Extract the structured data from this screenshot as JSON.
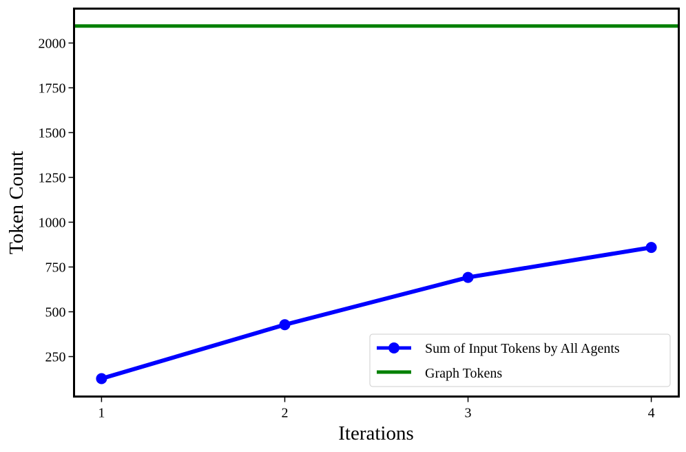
{
  "chart_data": {
    "type": "line",
    "title": "",
    "xlabel": "Iterations",
    "ylabel": "Token Count",
    "xlim": [
      0.85,
      4.15
    ],
    "ylim": [
      27,
      2192
    ],
    "xticks": [
      1,
      2,
      3,
      4
    ],
    "yticks": [
      250,
      500,
      750,
      1000,
      1250,
      1500,
      1750,
      2000
    ],
    "grid": false,
    "legend_position": "lower-right",
    "x": [
      1,
      2,
      3,
      4
    ],
    "series": [
      {
        "name": "Sum of Input Tokens by All Agents",
        "values": [
          127,
          428,
          692,
          859
        ],
        "color": "#0000ff",
        "marker": "circle"
      },
      {
        "name": "Graph Tokens",
        "type": "hline",
        "value": 2095,
        "color": "#008000"
      }
    ]
  }
}
